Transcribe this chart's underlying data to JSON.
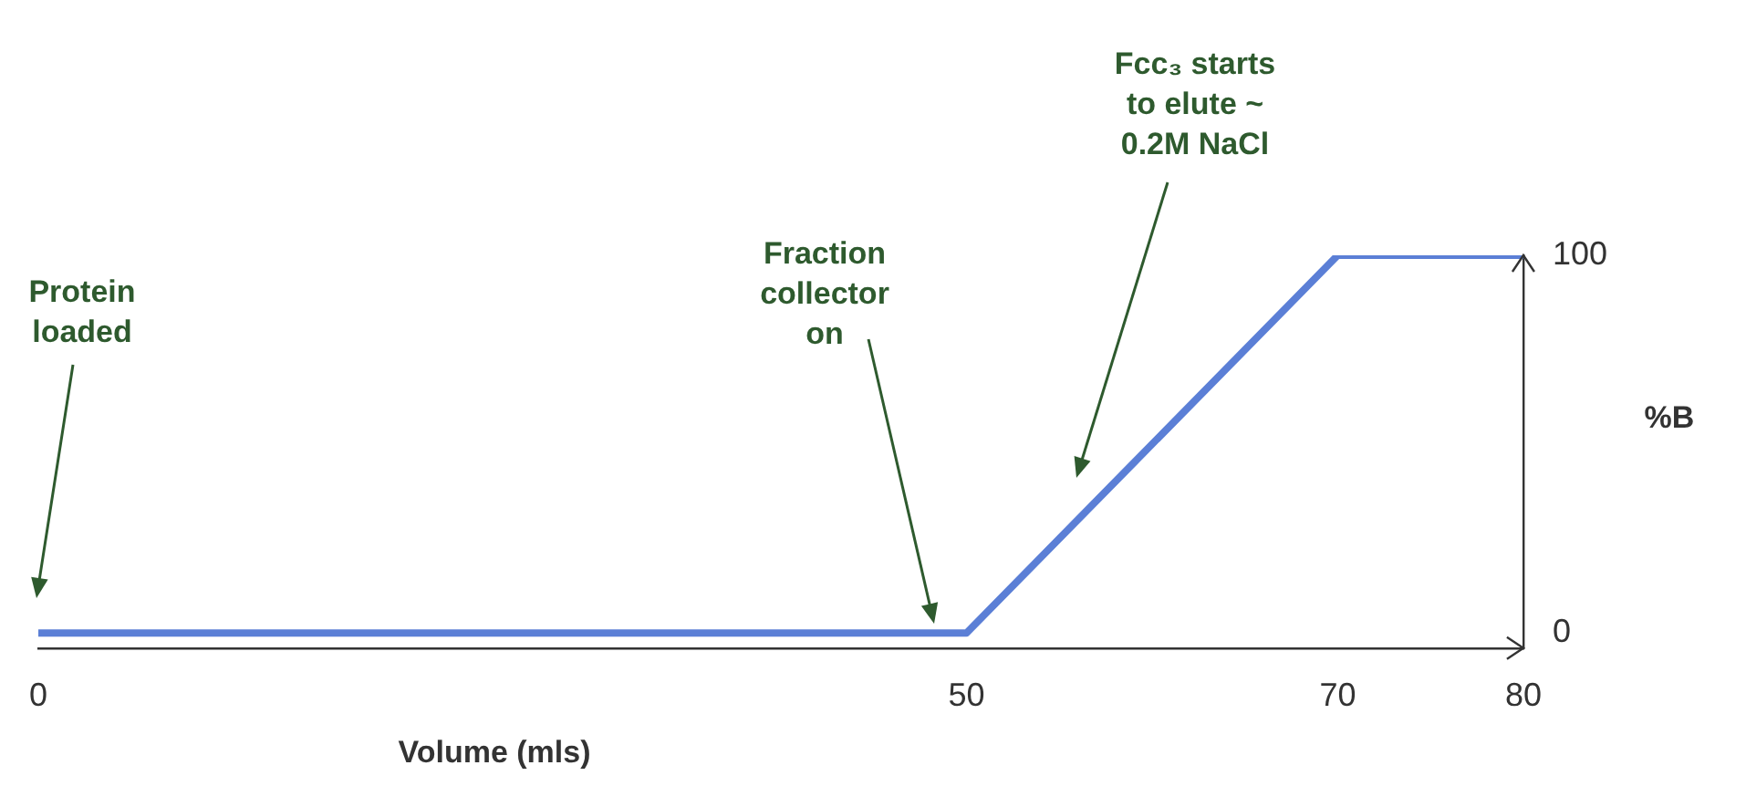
{
  "chart_data": {
    "type": "line",
    "xlabel": "Volume (mls)",
    "ylabel": "%B",
    "x": [
      0,
      50,
      70,
      80
    ],
    "series": [
      {
        "color": "#5b7fd6",
        "values": [
          0,
          0,
          100,
          100
        ]
      }
    ],
    "xlim": [
      0,
      80
    ],
    "xticks": [
      0,
      50,
      70,
      80
    ],
    "ylim": [
      -4,
      100
    ],
    "yticks": [
      0,
      100
    ],
    "grid": false,
    "legend": false,
    "marker": "none",
    "line_style": "solid",
    "annotations": [
      "Protein loaded",
      "Fraction collector on",
      "Fcc₃ starts to elute ~ 0.2M NaCl"
    ]
  }
}
